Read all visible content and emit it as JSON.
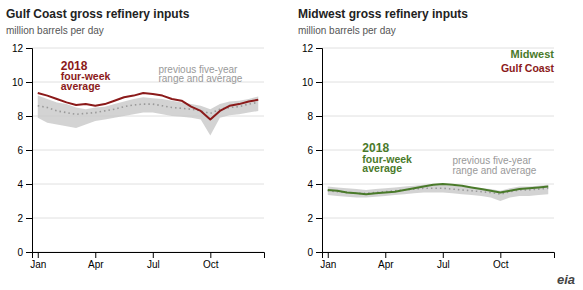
{
  "chart_data": [
    {
      "type": "line",
      "title": "Gulf Coast gross refinery inputs",
      "subtitle": "million barrels per day",
      "x": [
        0,
        0.5,
        1,
        1.5,
        2,
        2.5,
        3,
        3.5,
        4,
        4.5,
        5,
        5.5,
        6,
        6.5,
        7,
        7.5,
        8,
        8.5,
        9,
        9.5,
        10,
        10.5,
        11,
        11.5
      ],
      "series": [
        {
          "type": "area",
          "color": "#c8c8c8",
          "upper": [
            9.2,
            9.0,
            8.8,
            8.7,
            8.5,
            8.4,
            8.5,
            8.55,
            8.7,
            8.85,
            9.0,
            9.1,
            9.05,
            9.0,
            8.9,
            8.8,
            8.7,
            8.6,
            8.4,
            8.7,
            8.85,
            8.9,
            9.0,
            9.15
          ],
          "lower": [
            7.9,
            7.6,
            7.5,
            7.4,
            7.3,
            7.5,
            7.7,
            7.8,
            7.9,
            8.0,
            8.1,
            8.2,
            8.2,
            8.1,
            8.0,
            7.95,
            7.9,
            7.8,
            6.85,
            7.9,
            8.05,
            8.1,
            8.2,
            8.3
          ]
        },
        {
          "type": "line",
          "color": "#999999",
          "line_style": "dotted",
          "values": [
            8.6,
            8.5,
            8.3,
            8.2,
            8.1,
            8.15,
            8.2,
            8.3,
            8.4,
            8.55,
            8.65,
            8.7,
            8.7,
            8.6,
            8.5,
            8.45,
            8.4,
            8.3,
            8.15,
            8.4,
            8.5,
            8.55,
            8.7,
            8.8
          ]
        },
        {
          "type": "line",
          "color": "#8b1a1a",
          "line_style": "solid",
          "values": [
            9.35,
            9.2,
            9.0,
            8.8,
            8.65,
            8.7,
            8.6,
            8.7,
            8.9,
            9.1,
            9.2,
            9.35,
            9.3,
            9.2,
            9.0,
            8.9,
            8.55,
            8.3,
            7.8,
            8.3,
            8.6,
            8.7,
            8.85,
            8.95
          ]
        }
      ],
      "xlim": [
        -0.3,
        11.8
      ],
      "xticks": [
        {
          "value": 0,
          "label": "Jan"
        },
        {
          "value": 3,
          "label": "Apr"
        },
        {
          "value": 6,
          "label": "Jul"
        },
        {
          "value": 9,
          "label": "Oct"
        }
      ],
      "ylim": [
        0,
        12
      ],
      "yticks": [
        0,
        2,
        4,
        6,
        8,
        10,
        12
      ],
      "grid": true,
      "annotations": [
        {
          "text": "2018",
          "color": "#8b1a1a"
        },
        {
          "text": "four-week",
          "color": "#8b1a1a"
        },
        {
          "text": "average",
          "color": "#8b1a1a"
        },
        {
          "text": "previous five-year",
          "color": "#999999"
        },
        {
          "text": "range and average",
          "color": "#999999"
        }
      ]
    },
    {
      "type": "line",
      "title": "Midwest gross refinery inputs",
      "subtitle": "million barrels per day",
      "x": [
        0,
        0.5,
        1,
        1.5,
        2,
        2.5,
        3,
        3.5,
        4,
        4.5,
        5,
        5.5,
        6,
        6.5,
        7,
        7.5,
        8,
        8.5,
        9,
        9.5,
        10,
        10.5,
        11,
        11.5
      ],
      "series": [
        {
          "type": "area",
          "color": "#c8c8c8",
          "upper": [
            3.85,
            3.8,
            3.75,
            3.7,
            3.65,
            3.7,
            3.75,
            3.8,
            3.85,
            3.9,
            3.95,
            4.0,
            3.95,
            3.9,
            3.85,
            3.8,
            3.75,
            3.7,
            3.6,
            3.75,
            3.85,
            3.85,
            3.9,
            3.95
          ],
          "lower": [
            3.35,
            3.3,
            3.25,
            3.2,
            3.2,
            3.25,
            3.3,
            3.35,
            3.4,
            3.45,
            3.5,
            3.5,
            3.5,
            3.45,
            3.4,
            3.35,
            3.3,
            3.2,
            3.0,
            3.2,
            3.3,
            3.3,
            3.35,
            3.4
          ]
        },
        {
          "type": "line",
          "color": "#999999",
          "line_style": "dotted",
          "values": [
            3.6,
            3.55,
            3.5,
            3.45,
            3.45,
            3.5,
            3.55,
            3.6,
            3.65,
            3.7,
            3.75,
            3.75,
            3.75,
            3.7,
            3.65,
            3.6,
            3.55,
            3.5,
            3.4,
            3.55,
            3.65,
            3.65,
            3.7,
            3.75
          ]
        },
        {
          "type": "line",
          "color": "#4a7a2a",
          "line_style": "solid",
          "values": [
            3.65,
            3.6,
            3.5,
            3.45,
            3.4,
            3.45,
            3.5,
            3.55,
            3.65,
            3.75,
            3.85,
            3.95,
            4.0,
            3.95,
            3.9,
            3.8,
            3.7,
            3.6,
            3.5,
            3.6,
            3.7,
            3.75,
            3.8,
            3.85
          ]
        }
      ],
      "xlim": [
        -0.3,
        11.8
      ],
      "xticks": [
        {
          "value": 0,
          "label": "Jan"
        },
        {
          "value": 3,
          "label": "Apr"
        },
        {
          "value": 6,
          "label": "Jul"
        },
        {
          "value": 9,
          "label": "Oct"
        }
      ],
      "ylim": [
        0,
        12
      ],
      "yticks": [
        0,
        2,
        4,
        6,
        8,
        10,
        12
      ],
      "grid": true,
      "annotations": [
        {
          "text": "2018",
          "color": "#4a7a2a"
        },
        {
          "text": "four-week",
          "color": "#4a7a2a"
        },
        {
          "text": "average",
          "color": "#4a7a2a"
        },
        {
          "text": "previous five-year",
          "color": "#999999"
        },
        {
          "text": "range and average",
          "color": "#999999"
        },
        {
          "text": "Midwest",
          "color": "#4a7a2a"
        },
        {
          "text": "Gulf Coast",
          "color": "#8b1a1a"
        },
        {
          "text": "eia",
          "color": "#444444"
        }
      ]
    }
  ]
}
